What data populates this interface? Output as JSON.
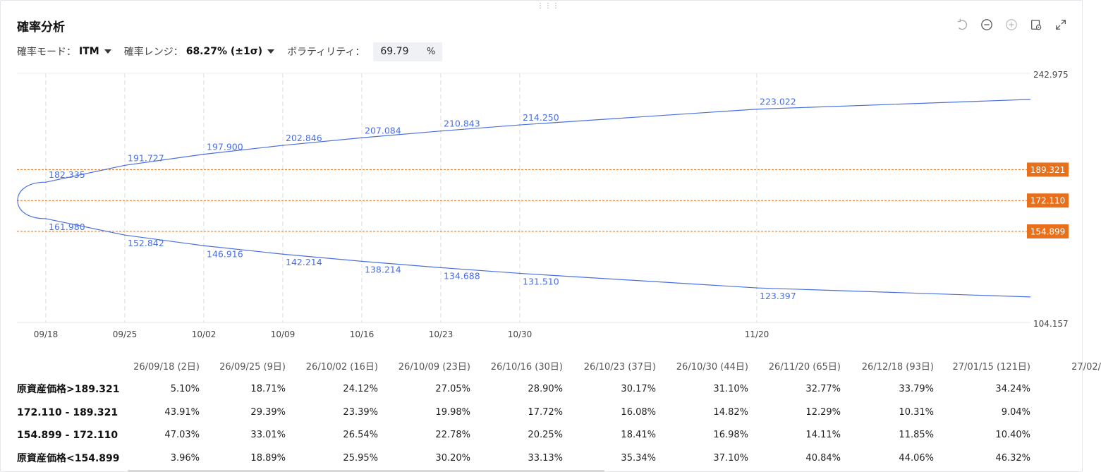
{
  "title": "確率分析",
  "controls": {
    "mode_label": "確率モード：",
    "mode_value": "ITM",
    "range_label": "確率レンジ：",
    "range_value": "68.27% (±1σ)",
    "vol_label": "ボラティリティ：",
    "vol_value": "69.79",
    "vol_unit": "%"
  },
  "toolbar": [
    "undo-icon",
    "zoom-out-icon",
    "zoom-in-icon",
    "settings-icon",
    "expand-icon"
  ],
  "colors": {
    "curve": "#4a6fe0",
    "level": "#e8701a",
    "label_text": "#4a6fe0"
  },
  "chart_data": {
    "type": "line",
    "y_axis": {
      "min": 104.157,
      "max": 242.975,
      "tick_labels": [
        "242.975",
        "104.157"
      ]
    },
    "x_tick_labels": [
      "09/18",
      "09/25",
      "10/02",
      "10/09",
      "10/16",
      "10/23",
      "10/30",
      "11/20"
    ],
    "horizontal_levels": [
      {
        "value": 189.321,
        "label": "189.321"
      },
      {
        "value": 172.11,
        "label": "172.110"
      },
      {
        "value": 154.899,
        "label": "154.899"
      }
    ],
    "series": [
      {
        "points": [
          {
            "date": "09/18",
            "value": 182.335
          },
          {
            "date": "09/25",
            "value": 191.727
          },
          {
            "date": "10/02",
            "value": 197.9
          },
          {
            "date": "10/09",
            "value": 202.846
          },
          {
            "date": "10/16",
            "value": 207.084
          },
          {
            "date": "10/23",
            "value": 210.843
          },
          {
            "date": "10/30",
            "value": 214.25
          },
          {
            "date": "11/20",
            "value": 223.022
          }
        ]
      },
      {
        "points": [
          {
            "date": "09/18",
            "value": 161.98
          },
          {
            "date": "09/25",
            "value": 152.842
          },
          {
            "date": "10/02",
            "value": 146.916
          },
          {
            "date": "10/09",
            "value": 142.214
          },
          {
            "date": "10/16",
            "value": 138.214
          },
          {
            "date": "10/23",
            "value": 134.688
          },
          {
            "date": "10/30",
            "value": 131.51
          },
          {
            "date": "11/20",
            "value": 123.397
          }
        ]
      }
    ],
    "grid": true
  },
  "table": {
    "headers": [
      "26/09/18 (2日)",
      "26/09/25 (9日)",
      "26/10/02 (16日)",
      "26/10/09 (23日)",
      "26/10/16 (30日)",
      "26/10/23 (37日)",
      "26/10/30 (44日)",
      "26/11/20 (65日)",
      "26/12/18 (93日)",
      "27/01/15 (121日)",
      "27/02/"
    ],
    "rows": [
      {
        "label": "原資産価格>189.321",
        "values": [
          "5.10%",
          "18.71%",
          "24.12%",
          "27.05%",
          "28.90%",
          "30.17%",
          "31.10%",
          "32.77%",
          "33.79%",
          "34.24%"
        ]
      },
      {
        "label": "172.110 - 189.321",
        "values": [
          "43.91%",
          "29.39%",
          "23.39%",
          "19.98%",
          "17.72%",
          "16.08%",
          "14.82%",
          "12.29%",
          "10.31%",
          "9.04%"
        ]
      },
      {
        "label": "154.899 - 172.110",
        "values": [
          "47.03%",
          "33.01%",
          "26.54%",
          "22.78%",
          "20.25%",
          "18.41%",
          "16.98%",
          "14.11%",
          "11.85%",
          "10.40%"
        ]
      },
      {
        "label": "原資産価格<154.899",
        "values": [
          "3.96%",
          "18.89%",
          "25.95%",
          "30.20%",
          "33.13%",
          "35.34%",
          "37.10%",
          "40.84%",
          "44.06%",
          "46.32%"
        ]
      }
    ]
  }
}
